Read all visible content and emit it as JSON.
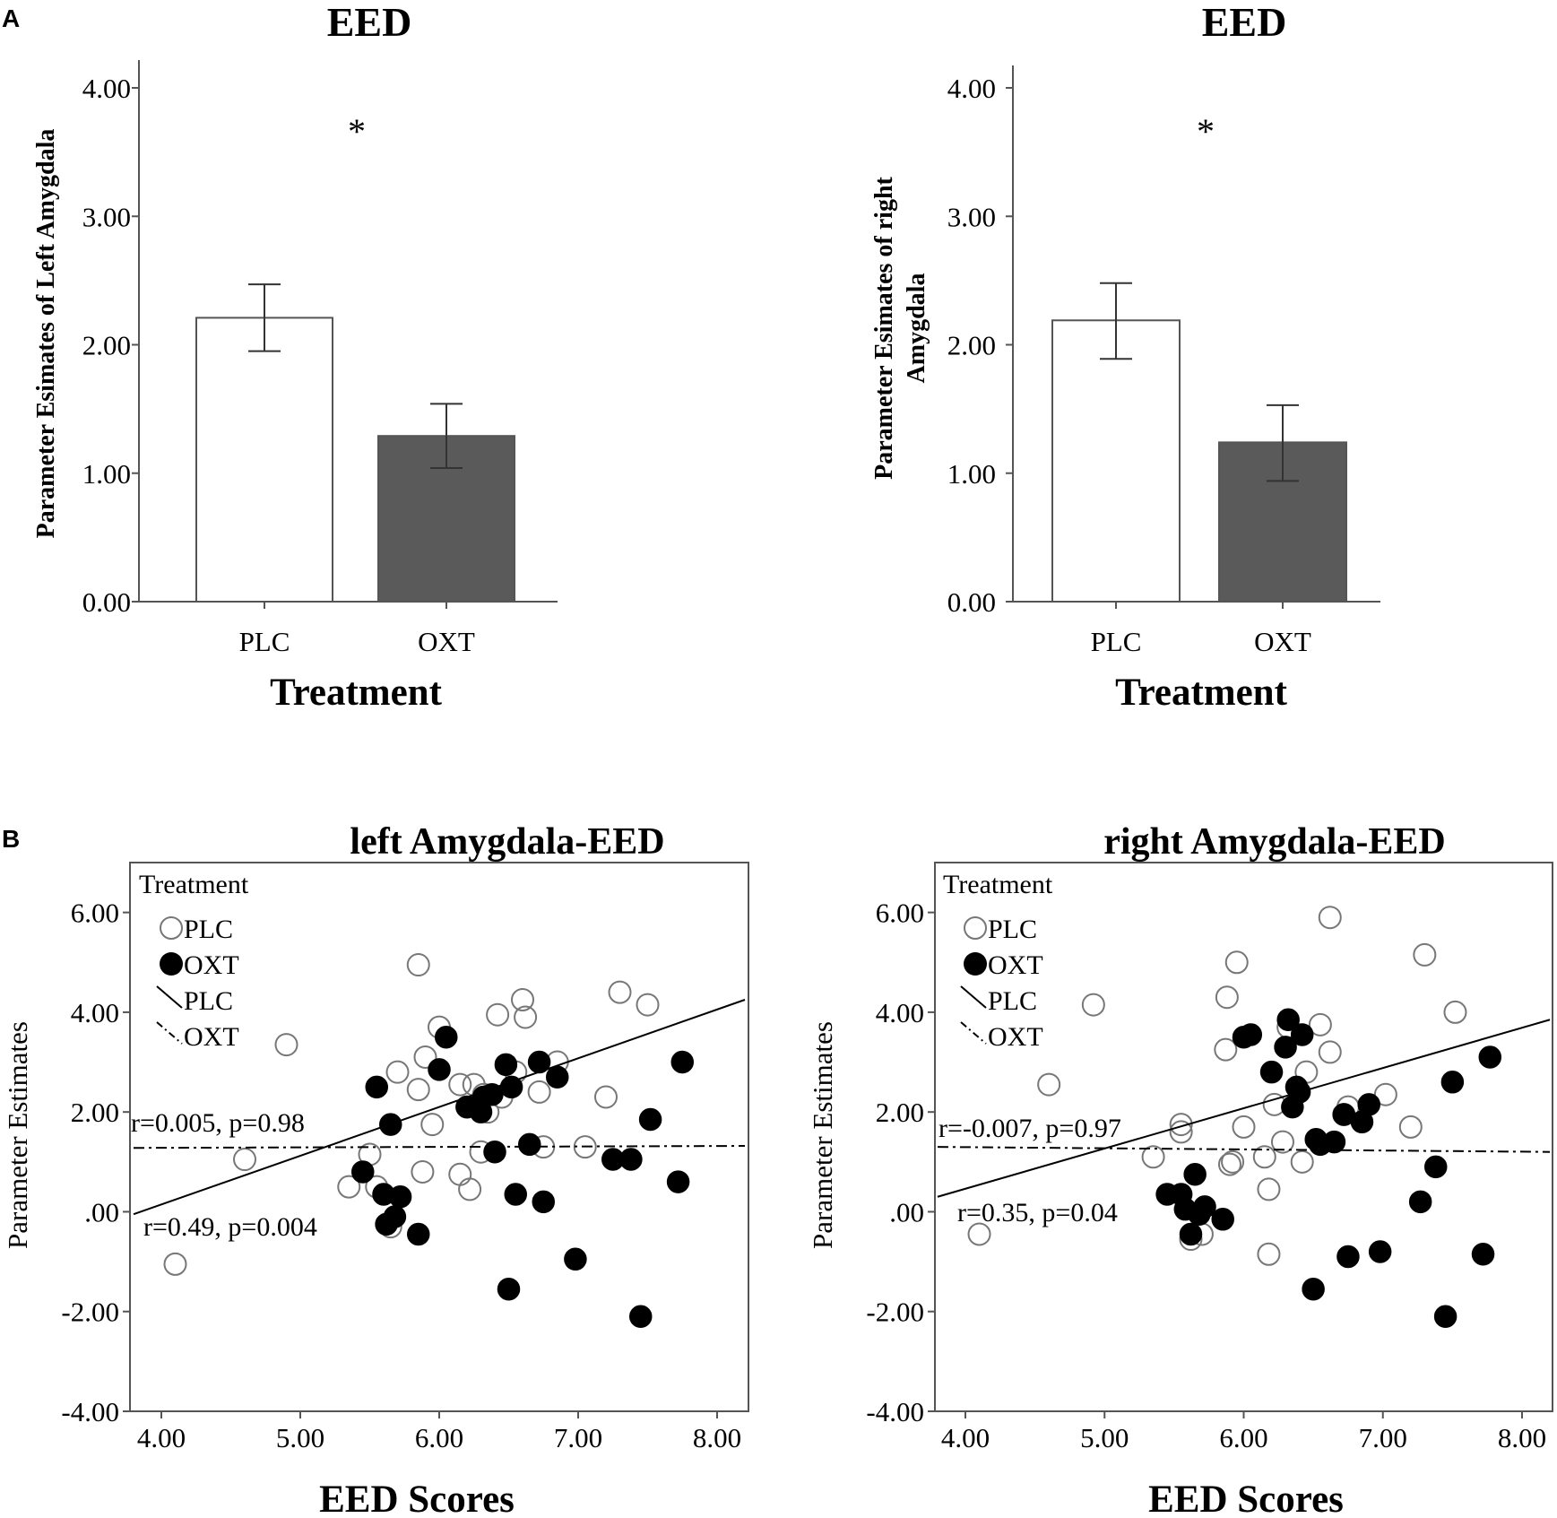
{
  "panel_letters": {
    "a": "A",
    "b": "B"
  },
  "colors": {
    "plc_fill": "#ffffff",
    "oxt_fill": "#5a5a5a",
    "axis": "#555555",
    "plc_marker_stroke": "#777777",
    "oxt_marker": "#000000"
  },
  "chart_data": [
    {
      "id": "bar_left",
      "type": "bar",
      "title": "EED",
      "xlabel": "Treatment",
      "ylabel": "Parameter Esimates of Left Amygdala",
      "categories": [
        "PLC",
        "OXT"
      ],
      "values": [
        2.21,
        1.29
      ],
      "error_low": [
        1.95,
        1.04
      ],
      "error_high": [
        2.47,
        1.54
      ],
      "ylim": [
        0,
        4.2
      ],
      "yticks": [
        0,
        1,
        2,
        3,
        4
      ],
      "ytick_labels": [
        "0.00",
        "1.00",
        "2.00",
        "3.00",
        "4.00"
      ],
      "significance": "*",
      "grid": false
    },
    {
      "id": "bar_right",
      "type": "bar",
      "title": "EED",
      "xlabel": "Treatment",
      "ylabel_lines": [
        "Parameter Esimates of right",
        "Amygdala"
      ],
      "categories": [
        "PLC",
        "OXT"
      ],
      "values": [
        2.19,
        1.24
      ],
      "error_low": [
        1.89,
        0.94
      ],
      "error_high": [
        2.48,
        1.53
      ],
      "ylim": [
        0,
        4.2
      ],
      "yticks": [
        0,
        1,
        2,
        3,
        4
      ],
      "ytick_labels": [
        "0.00",
        "1.00",
        "2.00",
        "3.00",
        "4.00"
      ],
      "significance": "*",
      "grid": false
    },
    {
      "id": "scatter_left",
      "type": "scatter",
      "title": "left Amygdala-EED",
      "xlabel": "EED Scores",
      "ylabel": "Parameter Estimates",
      "xlim": [
        3.8,
        8.2
      ],
      "ylim": [
        -4,
        7
      ],
      "xticks": [
        4,
        5,
        6,
        7,
        8
      ],
      "xtick_labels": [
        "4.00",
        "5.00",
        "6.00",
        "7.00",
        "8.00"
      ],
      "yticks": [
        -4,
        -2,
        0,
        2,
        4,
        6
      ],
      "ytick_labels": [
        "-4.00",
        "-2.00",
        ".00",
        "2.00",
        "4.00",
        "6.00"
      ],
      "legend": {
        "title": "Treatment",
        "entries": [
          "PLC",
          "OXT",
          "PLC",
          "OXT"
        ],
        "position": "top-left"
      },
      "annotations": [
        "r=0.005, p=0.98",
        "r=0.49, p=0.004"
      ],
      "series": [
        {
          "name": "PLC",
          "marker": "open-circle",
          "x": [
            4.1,
            4.6,
            4.9,
            5.35,
            5.5,
            5.55,
            5.65,
            5.7,
            5.85,
            5.85,
            5.88,
            5.9,
            5.95,
            6.0,
            6.15,
            6.15,
            6.2,
            6.22,
            6.25,
            6.3,
            6.32,
            6.35,
            6.42,
            6.45,
            6.55,
            6.6,
            6.62,
            6.72,
            6.75,
            6.85,
            7.05,
            7.2,
            7.3,
            7.5
          ],
          "y": [
            -1.05,
            1.05,
            3.35,
            0.5,
            1.15,
            0.5,
            -0.3,
            2.8,
            4.95,
            2.45,
            0.8,
            3.1,
            1.75,
            3.7,
            2.55,
            0.75,
            2.1,
            0.45,
            2.55,
            1.2,
            2.35,
            2.0,
            3.95,
            2.3,
            2.8,
            4.25,
            3.9,
            2.4,
            1.3,
            3.0,
            1.3,
            2.3,
            4.4,
            4.15
          ]
        },
        {
          "name": "OXT",
          "marker": "filled-circle",
          "x": [
            5.45,
            5.55,
            5.6,
            5.62,
            5.65,
            5.68,
            5.72,
            5.85,
            6.05,
            6.0,
            6.2,
            6.3,
            6.32,
            6.38,
            6.4,
            6.48,
            6.5,
            6.52,
            6.55,
            6.65,
            6.72,
            6.75,
            6.85,
            6.98,
            7.25,
            7.38,
            7.45,
            7.52,
            7.72,
            7.75
          ],
          "y": [
            0.8,
            2.5,
            0.35,
            -0.25,
            1.75,
            -0.1,
            0.3,
            -0.45,
            3.5,
            2.85,
            2.1,
            2.0,
            2.3,
            2.35,
            1.2,
            2.95,
            -1.55,
            2.5,
            0.35,
            1.35,
            3.0,
            0.2,
            2.7,
            -0.95,
            1.05,
            1.05,
            -2.1,
            1.85,
            0.6,
            3.0
          ]
        },
        {
          "name": "PLC fit",
          "type": "line",
          "style": "solid",
          "x": [
            3.8,
            8.2
          ],
          "y": [
            -0.05,
            4.25
          ]
        },
        {
          "name": "OXT fit",
          "type": "line",
          "style": "dash-dot",
          "x": [
            3.8,
            8.2
          ],
          "y": [
            1.28,
            1.32
          ]
        }
      ]
    },
    {
      "id": "scatter_right",
      "type": "scatter",
      "title": "right Amygdala-EED",
      "xlabel": "EED Scores",
      "ylabel": "Parameter Estimates",
      "xlim": [
        3.8,
        8.2
      ],
      "ylim": [
        -4,
        7
      ],
      "xticks": [
        4,
        5,
        6,
        7,
        8
      ],
      "xtick_labels": [
        "4.00",
        "5.00",
        "6.00",
        "7.00",
        "8.00"
      ],
      "yticks": [
        -4,
        -2,
        0,
        2,
        4,
        6
      ],
      "ytick_labels": [
        "-4.00",
        "-2.00",
        ".00",
        "2.00",
        "4.00",
        "6.00"
      ],
      "legend": {
        "title": "Treatment",
        "entries": [
          "PLC",
          "OXT",
          "PLC",
          "OXT"
        ],
        "position": "top-left"
      },
      "annotations": [
        "r=-0.007, p=0.97",
        "r=0.35, p=0.04"
      ],
      "series": [
        {
          "name": "PLC",
          "marker": "open-circle",
          "x": [
            4.1,
            4.6,
            4.92,
            5.35,
            5.55,
            5.55,
            5.62,
            5.7,
            5.87,
            5.88,
            5.9,
            5.92,
            5.95,
            6.0,
            6.15,
            6.18,
            6.18,
            6.22,
            6.28,
            6.32,
            6.42,
            6.45,
            6.55,
            6.62,
            6.62,
            6.72,
            6.75,
            7.02,
            7.2,
            7.3,
            7.52
          ],
          "y": [
            -0.45,
            2.55,
            4.15,
            1.1,
            1.6,
            1.75,
            -0.55,
            -0.45,
            3.25,
            4.3,
            0.95,
            1.0,
            5.0,
            1.7,
            1.1,
            -0.85,
            0.45,
            2.15,
            1.4,
            3.7,
            1.0,
            2.8,
            3.75,
            5.9,
            3.2,
            1.95,
            2.1,
            2.35,
            1.7,
            5.15,
            4.0
          ]
        },
        {
          "name": "OXT",
          "marker": "filled-circle",
          "x": [
            5.45,
            5.55,
            5.58,
            5.62,
            5.65,
            5.68,
            5.72,
            5.85,
            6.0,
            6.05,
            6.2,
            6.3,
            6.32,
            6.35,
            6.38,
            6.4,
            6.42,
            6.5,
            6.52,
            6.55,
            6.65,
            6.72,
            6.75,
            6.85,
            6.9,
            6.98,
            7.27,
            7.38,
            7.45,
            7.5,
            7.72,
            7.77
          ],
          "y": [
            0.35,
            0.35,
            0.05,
            -0.45,
            0.75,
            -0.05,
            0.1,
            -0.15,
            3.5,
            3.55,
            2.8,
            3.3,
            3.85,
            2.1,
            2.5,
            2.4,
            3.55,
            -1.55,
            1.45,
            1.35,
            1.4,
            1.95,
            -0.9,
            1.8,
            2.15,
            -0.8,
            0.2,
            0.9,
            -2.1,
            2.6,
            -0.85,
            3.1
          ]
        },
        {
          "name": "PLC fit",
          "type": "line",
          "style": "solid",
          "x": [
            3.8,
            8.2
          ],
          "y": [
            0.3,
            3.85
          ]
        },
        {
          "name": "OXT fit",
          "type": "line",
          "style": "dash-dot",
          "x": [
            3.8,
            8.2
          ],
          "y": [
            1.3,
            1.2
          ]
        }
      ]
    }
  ]
}
